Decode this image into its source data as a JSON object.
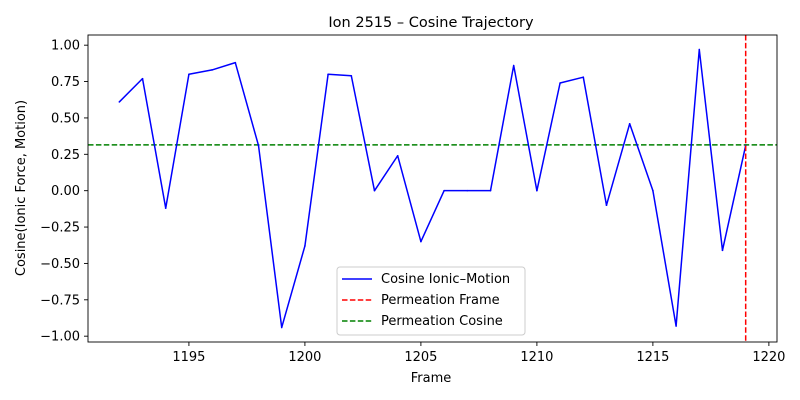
{
  "chart_data": {
    "type": "line",
    "title": "Ion 2515 – Cosine Trajectory",
    "xlabel": "Frame",
    "ylabel": "Cosine(Ionic Force, Motion)",
    "xlim": [
      1190.65,
      1220.35
    ],
    "ylim": [
      -1.04,
      1.07
    ],
    "xticks": [
      1195,
      1200,
      1205,
      1210,
      1215,
      1220
    ],
    "xtick_labels": [
      "1195",
      "1200",
      "1205",
      "1210",
      "1215",
      "1220"
    ],
    "yticks": [
      1.0,
      0.75,
      0.5,
      0.25,
      0.0,
      -0.25,
      -0.5,
      -0.75,
      -1.0
    ],
    "ytick_labels": [
      "1.00",
      "0.75",
      "0.50",
      "0.25",
      "0.00",
      "−0.25",
      "−0.50",
      "−0.75",
      "−1.00"
    ],
    "grid": false,
    "legend_position": "bottom-center",
    "series": [
      {
        "name": "Cosine Ionic–Motion",
        "color": "#0000ff",
        "style": "solid",
        "x": [
          1192,
          1193,
          1194,
          1195,
          1196,
          1197,
          1198,
          1199,
          1200,
          1201,
          1202,
          1203,
          1204,
          1205,
          1206,
          1207,
          1208,
          1209,
          1210,
          1211,
          1212,
          1213,
          1214,
          1215,
          1216,
          1217,
          1218,
          1219
        ],
        "y": [
          0.61,
          0.77,
          -0.12,
          0.8,
          0.83,
          0.88,
          0.31,
          -0.94,
          -0.38,
          0.8,
          0.79,
          0.0,
          0.24,
          -0.35,
          0.0,
          0.0,
          0.0,
          0.86,
          0.0,
          0.74,
          0.78,
          -0.1,
          0.46,
          0.0,
          -0.93,
          0.97,
          -0.41,
          0.31
        ]
      }
    ],
    "reference_lines": [
      {
        "name": "Permeation Frame",
        "orientation": "vertical",
        "value": 1219,
        "color": "#ff0000",
        "style": "dashed"
      },
      {
        "name": "Permeation Cosine",
        "orientation": "horizontal",
        "value": 0.315,
        "color": "#008000",
        "style": "dashed"
      }
    ]
  }
}
